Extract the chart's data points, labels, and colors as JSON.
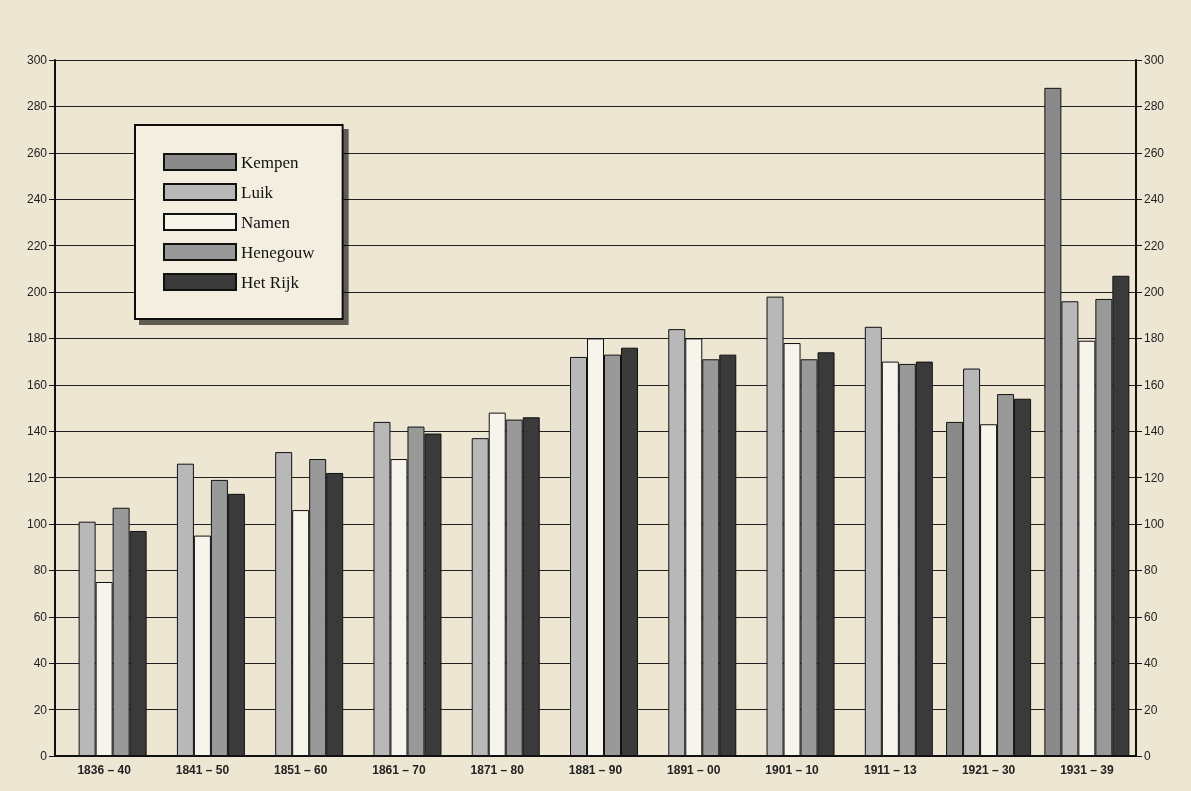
{
  "chart_data": {
    "type": "bar",
    "categories": [
      "1836 – 40",
      "1841 – 50",
      "1851 – 60",
      "1861 – 70",
      "1871 – 80",
      "1881 – 90",
      "1891 – 00",
      "1901 – 10",
      "1911 – 13",
      "1921 – 30",
      "1931 – 39"
    ],
    "series": [
      {
        "name": "Kempen",
        "color": "#8a8a8a",
        "values": [
          null,
          null,
          null,
          null,
          null,
          null,
          null,
          null,
          null,
          144,
          288
        ]
      },
      {
        "name": "Luik",
        "color": "#b8b8b8",
        "values": [
          101,
          126,
          131,
          144,
          137,
          172,
          184,
          198,
          185,
          167,
          196
        ]
      },
      {
        "name": "Namen",
        "color": "#f7f4ec",
        "values": [
          75,
          95,
          106,
          128,
          148,
          180,
          180,
          178,
          170,
          143,
          179
        ]
      },
      {
        "name": "Henegouw",
        "color": "#999999",
        "values": [
          107,
          119,
          128,
          142,
          145,
          173,
          171,
          171,
          169,
          156,
          197
        ]
      },
      {
        "name": "Het Rijk",
        "color": "#3a3a3a",
        "values": [
          97,
          113,
          122,
          139,
          146,
          176,
          173,
          174,
          170,
          154,
          207
        ]
      }
    ],
    "ylim": [
      0,
      300
    ],
    "yticks": [
      0,
      20,
      40,
      60,
      80,
      100,
      120,
      140,
      160,
      180,
      200,
      220,
      240,
      260,
      280,
      300
    ],
    "y2lim": [
      0,
      300
    ],
    "y2ticks": [
      0,
      20,
      40,
      60,
      80,
      100,
      120,
      140,
      160,
      180,
      200,
      220,
      240,
      260,
      280,
      300
    ],
    "grid": "y",
    "legend": "top left"
  }
}
